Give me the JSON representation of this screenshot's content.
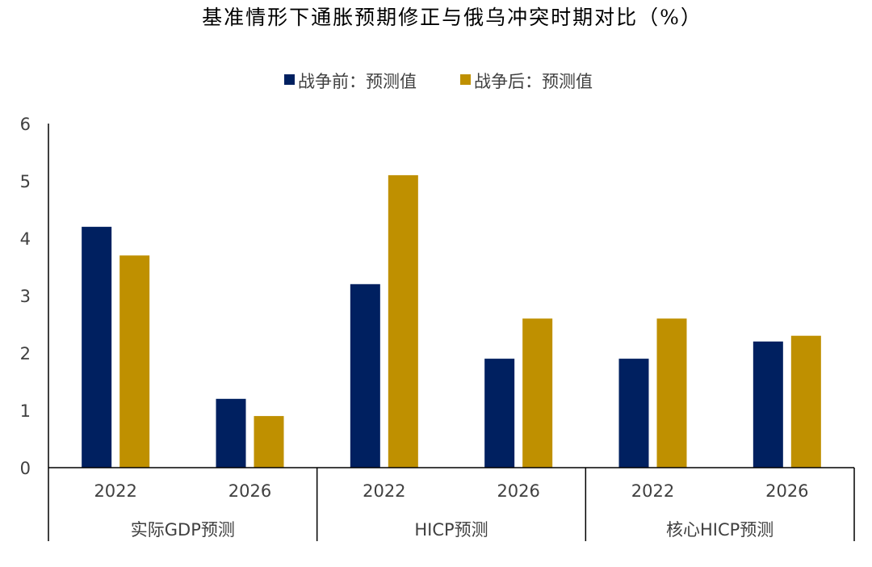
{
  "chart_data": {
    "type": "bar",
    "title": "基准情形下通胀预期修正与俄乌冲突时期对比（%）",
    "ylim": [
      0,
      6
    ],
    "yticks": [
      0,
      1,
      2,
      3,
      4,
      5,
      6
    ],
    "xlabel": "",
    "ylabel": "",
    "legend_position": "top-center",
    "grid": false,
    "categories": [
      "2022",
      "2026",
      "2022",
      "2026",
      "2022",
      "2026"
    ],
    "groups": [
      {
        "label": "实际GDP预测",
        "categories": [
          "2022",
          "2026"
        ]
      },
      {
        "label": "HICP预测",
        "categories": [
          "2022",
          "2026"
        ]
      },
      {
        "label": "核心HICP预测",
        "categories": [
          "2022",
          "2026"
        ]
      }
    ],
    "series": [
      {
        "name": "战争前：预测值",
        "color": "#002060",
        "values": [
          4.2,
          1.2,
          3.2,
          1.9,
          1.9,
          2.2
        ]
      },
      {
        "name": "战争后：预测值",
        "color": "#BF9000",
        "values": [
          3.7,
          0.9,
          5.1,
          2.6,
          2.6,
          2.3
        ]
      }
    ]
  }
}
